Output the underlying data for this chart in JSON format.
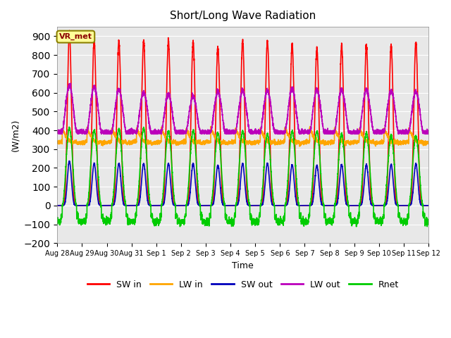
{
  "title": "Short/Long Wave Radiation",
  "xlabel": "Time",
  "ylabel": "(W/m2)",
  "ylim": [
    -200,
    950
  ],
  "yticks": [
    -200,
    -100,
    0,
    100,
    200,
    300,
    400,
    500,
    600,
    700,
    800,
    900
  ],
  "plot_bg_color": "#e8e8e8",
  "grid_color": "#ffffff",
  "annotation_text": "VR_met",
  "annotation_box_color": "#ffff99",
  "annotation_box_edge": "#8B8000",
  "series": {
    "SW_in": {
      "color": "#ff0000",
      "label": "SW in"
    },
    "LW_in": {
      "color": "#ffa500",
      "label": "LW in"
    },
    "SW_out": {
      "color": "#0000bb",
      "label": "SW out"
    },
    "LW_out": {
      "color": "#bb00bb",
      "label": "LW out"
    },
    "Rnet": {
      "color": "#00cc00",
      "label": "Rnet"
    }
  },
  "x_tick_labels": [
    "Aug 28",
    "Aug 29",
    "Aug 30",
    "Aug 31",
    "Sep 1",
    "Sep 2",
    "Sep 3",
    "Sep 4",
    "Sep 5",
    "Sep 6",
    "Sep 7",
    "Sep 8",
    "Sep 9",
    "Sep 10",
    "Sep 11",
    "Sep 12"
  ],
  "n_days": 15,
  "pts_per_day": 288,
  "line_width": 1.2
}
